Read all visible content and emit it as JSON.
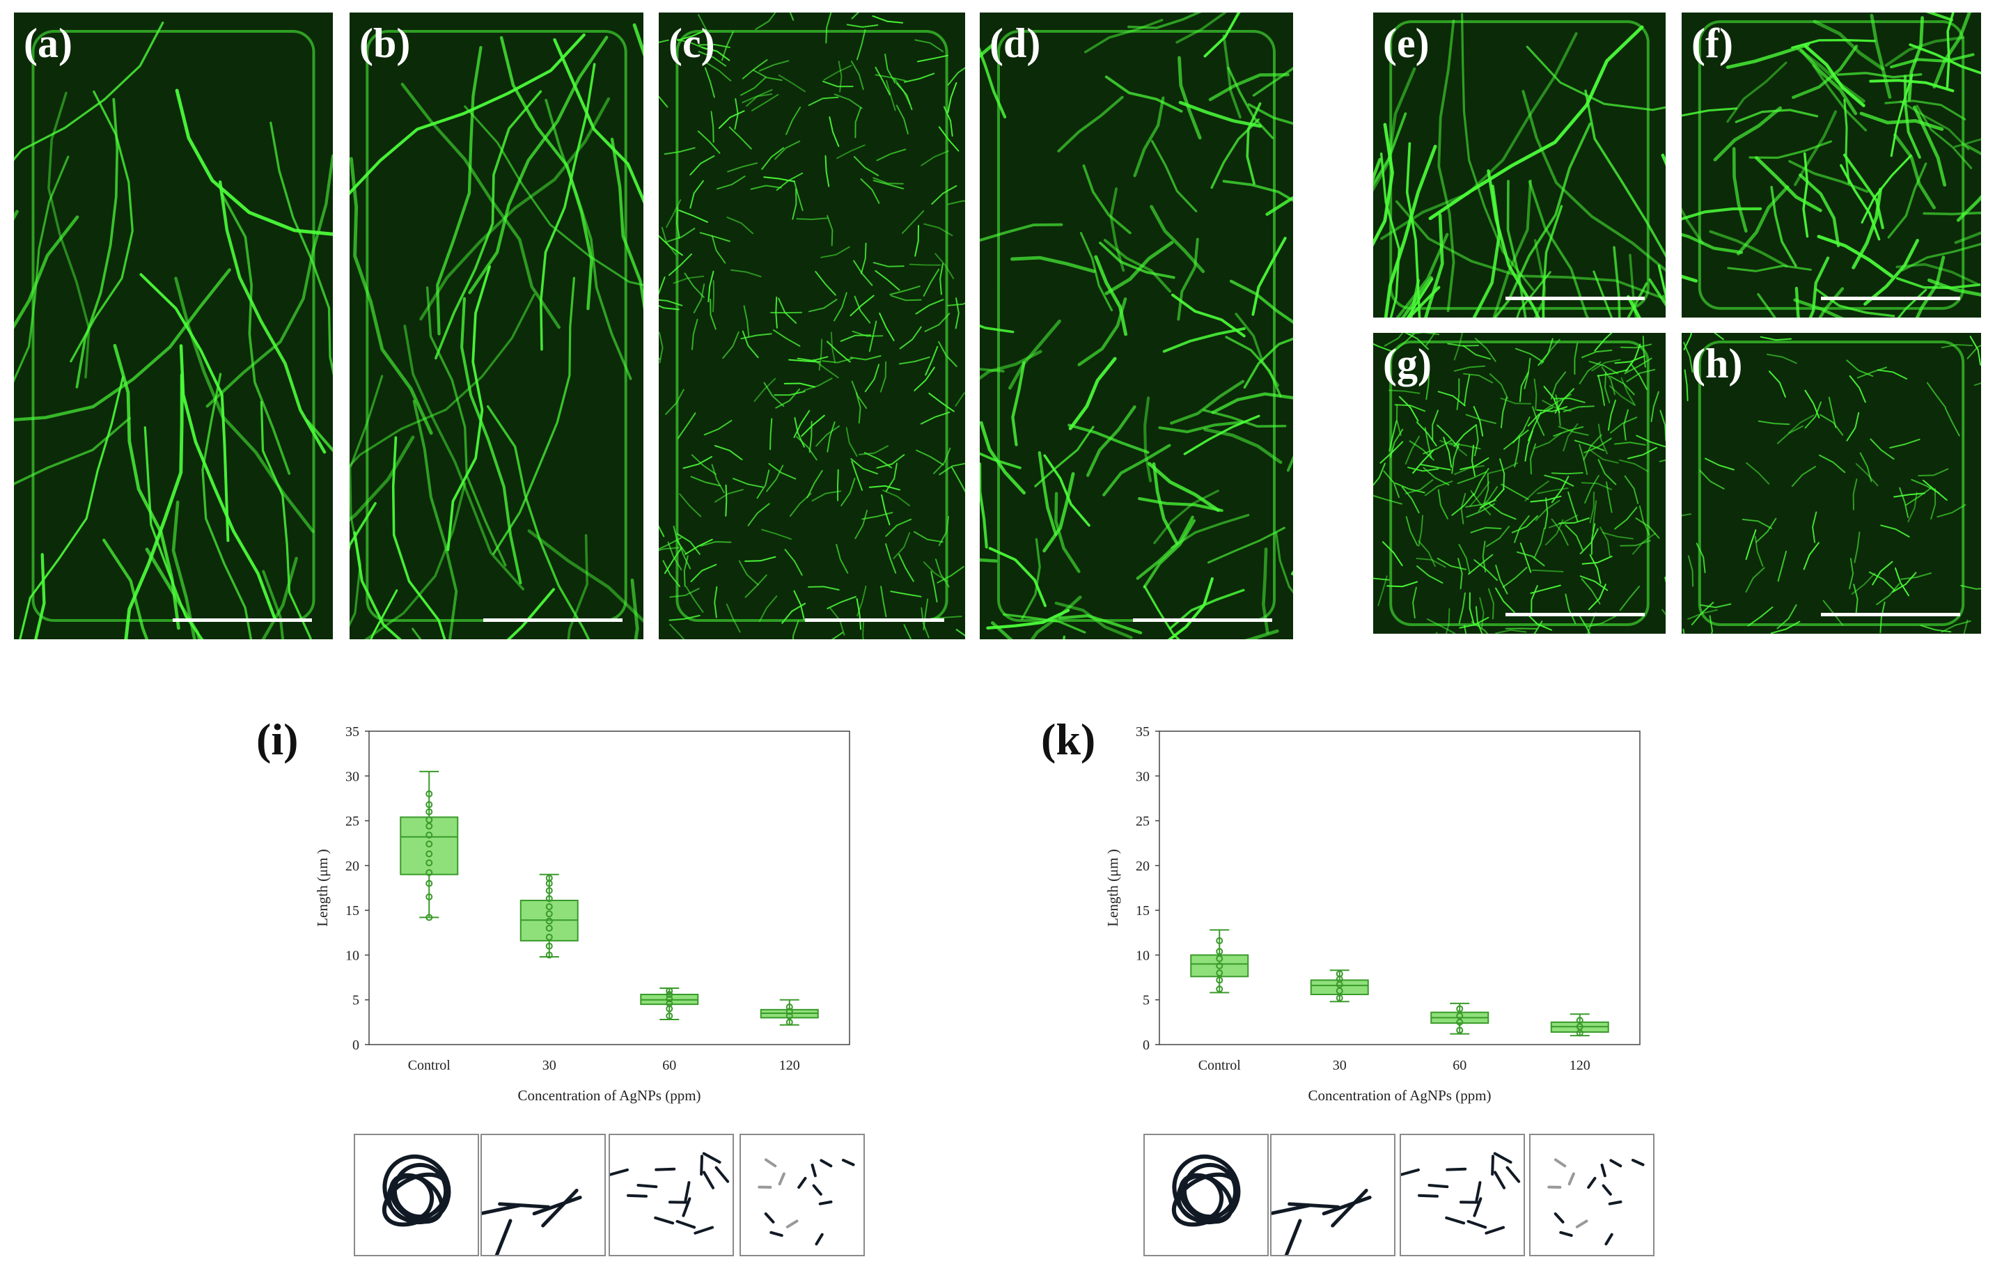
{
  "panels": [
    {
      "label": "(a)",
      "density": 30,
      "style": "long"
    },
    {
      "label": "(b)",
      "density": 34,
      "style": "long"
    },
    {
      "label": "(c)",
      "density": 260,
      "style": "short"
    },
    {
      "label": "(d)",
      "density": 90,
      "style": "mid"
    },
    {
      "label": "(e)",
      "density": 40,
      "style": "long"
    },
    {
      "label": "(f)",
      "density": 70,
      "style": "mid"
    },
    {
      "label": "(g)",
      "density": 220,
      "style": "short"
    },
    {
      "label": "(h)",
      "density": 80,
      "style": "short"
    }
  ],
  "colors": {
    "fluor_bg": "#0b2a07",
    "fluor_fil": "#4cff3a",
    "box_fill": "#8fe07a",
    "box_stroke": "#3a9a2a",
    "point": "#3a9a2a"
  },
  "chart_data": [
    {
      "type": "box",
      "panel_label": "(i)",
      "categories": [
        "Control",
        "30",
        "60",
        "120"
      ],
      "xlabel": "Concentration of AgNPs (ppm)",
      "ylabel": "Length (μm )",
      "ylim": [
        0,
        35
      ],
      "yticks": [
        0,
        5,
        10,
        15,
        20,
        25,
        30,
        35
      ],
      "boxes": [
        {
          "min": 14.2,
          "q1": 19.0,
          "median": 23.2,
          "q3": 25.4,
          "max": 30.5,
          "points": [
            14.2,
            16.5,
            18.0,
            19.2,
            20.3,
            21.3,
            22.4,
            23.4,
            24.4,
            25.1,
            26.0,
            26.8,
            28.0
          ]
        },
        {
          "min": 9.8,
          "q1": 11.6,
          "median": 13.9,
          "q3": 16.1,
          "max": 19.0,
          "points": [
            10.0,
            11.0,
            12.0,
            13.0,
            13.8,
            14.6,
            15.4,
            16.3,
            17.2,
            18.0,
            18.6
          ]
        },
        {
          "min": 2.8,
          "q1": 4.5,
          "median": 5.0,
          "q3": 5.6,
          "max": 6.3,
          "points": [
            3.2,
            4.0,
            4.6,
            5.1,
            5.6,
            6.0
          ]
        },
        {
          "min": 2.2,
          "q1": 3.0,
          "median": 3.5,
          "q3": 3.9,
          "max": 5.0,
          "points": [
            2.5,
            3.2,
            3.7,
            4.2
          ]
        }
      ]
    },
    {
      "type": "box",
      "panel_label": "(k)",
      "categories": [
        "Control",
        "30",
        "60",
        "120"
      ],
      "xlabel": "Concentration of AgNPs (ppm)",
      "ylabel": "Length (μm )",
      "ylim": [
        0,
        35
      ],
      "yticks": [
        0,
        5,
        10,
        15,
        20,
        25,
        30,
        35
      ],
      "boxes": [
        {
          "min": 5.8,
          "q1": 7.6,
          "median": 9.0,
          "q3": 10.0,
          "max": 12.8,
          "points": [
            6.2,
            7.2,
            8.0,
            8.8,
            9.6,
            10.4,
            11.6
          ]
        },
        {
          "min": 4.8,
          "q1": 5.6,
          "median": 6.6,
          "q3": 7.2,
          "max": 8.3,
          "points": [
            5.2,
            6.0,
            6.7,
            7.3,
            7.9
          ]
        },
        {
          "min": 1.2,
          "q1": 2.4,
          "median": 3.0,
          "q3": 3.6,
          "max": 4.6,
          "points": [
            1.6,
            2.5,
            3.2,
            4.0
          ]
        },
        {
          "min": 1.0,
          "q1": 1.4,
          "median": 2.0,
          "q3": 2.5,
          "max": 3.4,
          "points": [
            1.3,
            2.0,
            2.7
          ]
        }
      ]
    }
  ]
}
